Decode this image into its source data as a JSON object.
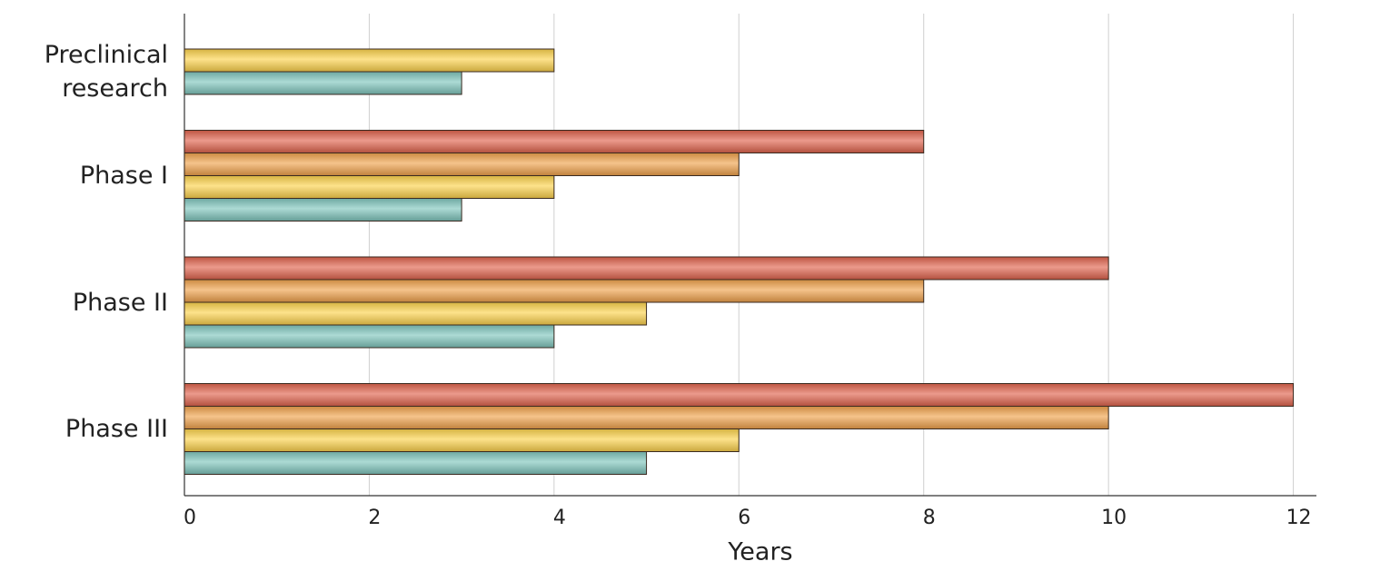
{
  "chart_data": {
    "type": "bar",
    "orientation": "horizontal",
    "categories": [
      "Preclinical research",
      "Phase I",
      "Phase II",
      "Phase III"
    ],
    "series": [
      {
        "color": "#e0644e",
        "values": [
          null,
          8,
          10,
          12
        ]
      },
      {
        "color": "#f0a24c",
        "values": [
          null,
          6,
          8,
          10
        ]
      },
      {
        "color": "#fcd24c",
        "values": [
          4,
          4,
          5,
          6
        ]
      },
      {
        "color": "#80c6bd",
        "values": [
          3,
          3,
          4,
          5
        ]
      }
    ],
    "x_label": "Years",
    "xlim": [
      0,
      12.25
    ],
    "xticks": [
      0,
      2,
      4,
      6,
      8,
      10,
      12
    ],
    "grid": true
  }
}
